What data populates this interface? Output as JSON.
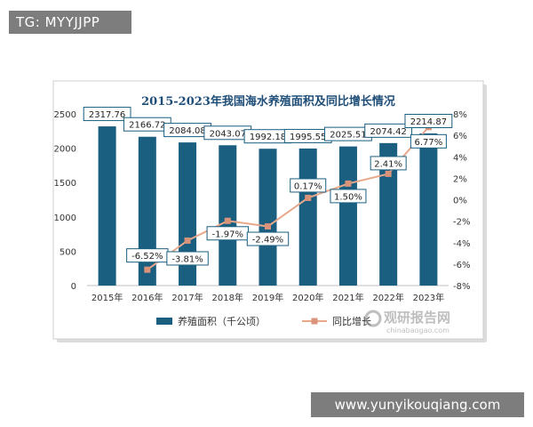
{
  "overlay": {
    "top_label": "TG: MYYJJPP",
    "bottom_label": "www.yunyikouqiang.com"
  },
  "watermark": {
    "main": "观研报告网",
    "sub": "chinabaogao.com"
  },
  "colors": {
    "bar": "#1a5e80",
    "line": "#e8a88c",
    "marker": "#d9937a",
    "label_border": "#1a5e80"
  },
  "chart_data": {
    "type": "bar",
    "title": "2015-2023年我国海水养殖面积及同比增长情况",
    "categories": [
      "2015年",
      "2016年",
      "2017年",
      "2018年",
      "2019年",
      "2020年",
      "2021年",
      "2022年",
      "2023年"
    ],
    "series": [
      {
        "name": "养殖面积（千公顷）",
        "type": "bar",
        "axis": "left",
        "values": [
          2317.76,
          2166.72,
          2084.08,
          2043.07,
          1992.18,
          1995.55,
          2025.51,
          2074.42,
          2214.87
        ],
        "labels": [
          "2317.76",
          "2166.72",
          "2084.08",
          "2043.07",
          "1992.18",
          "1995.55",
          "2025.51",
          "2074.42",
          "2214.87"
        ]
      },
      {
        "name": "同比增长",
        "type": "line",
        "axis": "right",
        "values": [
          null,
          -6.52,
          -3.81,
          -1.97,
          -2.49,
          0.17,
          1.5,
          2.41,
          6.77
        ],
        "labels": [
          "",
          "-6.52%",
          "-3.81%",
          "-1.97%",
          "-2.49%",
          "0.17%",
          "1.50%",
          "2.41%",
          "6.77%"
        ]
      }
    ],
    "y_left": {
      "ylim": [
        0,
        2500
      ],
      "ticks": [
        0,
        500,
        1000,
        1500,
        2000,
        2500
      ]
    },
    "y_right": {
      "ylim": [
        -8,
        8
      ],
      "ticks": [
        "-8%",
        "-6%",
        "-4%",
        "-2%",
        "0%",
        "2%",
        "4%",
        "6%",
        "8%"
      ]
    },
    "legend_position": "bottom",
    "grid": false
  }
}
